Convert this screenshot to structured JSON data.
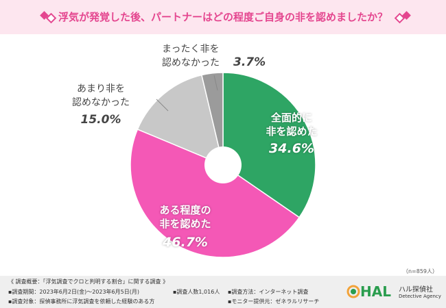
{
  "header": {
    "title": "浮気が発覚した後、パートナーはどの程度ご自身の非を認めましたか？"
  },
  "chart_data": {
    "type": "pie",
    "title": "浮気が発覚した後、パートナーはどの程度ご自身の非を認めましたか？",
    "donut": true,
    "slices": [
      {
        "label": "全面的に非を認めた",
        "value": 34.6,
        "value_label": "34.6%",
        "color": "#2ea564"
      },
      {
        "label": "ある程度の非を認めた",
        "value": 46.7,
        "value_label": "46.7%",
        "color": "#f458b6"
      },
      {
        "label": "あまり非を認めなかった",
        "value": 15.0,
        "value_label": "15.0%",
        "color": "#c8c8c8"
      },
      {
        "label": "まったく非を認めなかった",
        "value": 3.7,
        "value_label": "3.7%",
        "color": "#9b9b9b"
      }
    ],
    "labels_display": {
      "s0_l1": "全面的に",
      "s0_l2": "非を認めた",
      "s1_l1": "ある程度の",
      "s1_l2": "非を認めた",
      "s2_l1": "あまり非を",
      "s2_l2": "認めなかった",
      "s3_l1": "まったく非を",
      "s3_l2": "認めなかった"
    },
    "sample_note": "（n=859人）"
  },
  "footer": {
    "summary": "《 調査概要：「浮気調査でクロと判明する割合」に関する調査 》",
    "period": "▪調査期間：2023年6月2日(金)～2023年6月5日(月)",
    "respondents": "▪調査人数1,016人",
    "method": "▪調査方法：インターネット調査",
    "target": "▪調査対象：探偵事務所に浮気調査を依頼した経験のある方",
    "provider": "▪モニター提供元：ゼネラルリサーチ"
  },
  "logo": {
    "mark": "HAL",
    "name_jp": "ハル探偵社",
    "name_en": "Detective Agency"
  }
}
